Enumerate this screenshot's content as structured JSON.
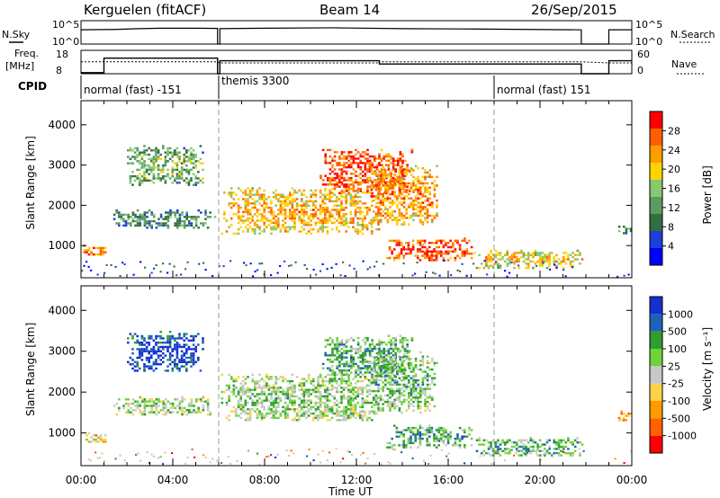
{
  "header": {
    "station": "Kerguelen (fitACF)",
    "beam": "Beam 14",
    "date": "26/Sep/2015"
  },
  "strip_labels": {
    "nsky": "N.Sky",
    "nsearch": "N.Search",
    "freq": "Freq.",
    "freq_unit": "[MHz]",
    "nave": "Nave",
    "cpid": "CPID"
  },
  "strip_ticks": {
    "nsky_left": [
      "10^5",
      "10^0"
    ],
    "nsearch_right": [
      "10^5",
      "10^0"
    ],
    "freq_left": [
      "18",
      "8"
    ],
    "nave_right": [
      "60",
      "0"
    ]
  },
  "cpid_modes": [
    {
      "label": "normal (fast) -151",
      "start": 0.0,
      "end": 6.0
    },
    {
      "label": "themis 3300",
      "start": 6.0,
      "end": 18.0
    },
    {
      "label": "normal (fast) 151",
      "start": 18.0,
      "end": 24.0
    }
  ],
  "colors": {
    "power": [
      "#0000ff",
      "#1c3fd8",
      "#336e42",
      "#5a9c60",
      "#88c870",
      "#ffd400",
      "#ff9d00",
      "#ff5f00",
      "#ff0000"
    ],
    "velocity": [
      "#ff0000",
      "#ff6000",
      "#ff9a00",
      "#ffd24a",
      "#c8c8c8",
      "#6fd23c",
      "#2e9e2e",
      "#2060b8",
      "#1030d0"
    ]
  },
  "chart_data": [
    {
      "type": "heatmap",
      "title": "",
      "xlabel": "",
      "ylabel": "Slant Range [km]",
      "xlim": [
        0,
        24
      ],
      "ylim": [
        200,
        4600
      ],
      "x_ticks": [
        "00:00",
        "04:00",
        "08:00",
        "12:00",
        "16:00",
        "20:00",
        "00:00"
      ],
      "y_ticks": [
        1000,
        2000,
        3000,
        4000
      ],
      "colorbar": {
        "label": "Power [dB]",
        "range": [
          0,
          32
        ],
        "ticks": [
          4,
          8,
          12,
          16,
          20,
          24,
          28
        ]
      },
      "regions": [
        {
          "t": [
            0.1,
            1.1
          ],
          "r": [
            760,
            1020
          ],
          "level": 0.7
        },
        {
          "t": [
            1.2,
            5.8
          ],
          "r": [
            1450,
            1900
          ],
          "level": 0.25
        },
        {
          "t": [
            2.0,
            5.3
          ],
          "r": [
            2500,
            3500
          ],
          "level": 0.35
        },
        {
          "t": [
            6.1,
            13.0
          ],
          "r": [
            1300,
            2450
          ],
          "level": 0.6
        },
        {
          "t": [
            10.4,
            14.4
          ],
          "r": [
            2300,
            3400
          ],
          "level": 0.8
        },
        {
          "t": [
            12.5,
            15.5
          ],
          "r": [
            1500,
            3000
          ],
          "level": 0.65
        },
        {
          "t": [
            13.3,
            17.0
          ],
          "r": [
            650,
            1200
          ],
          "level": 0.8
        },
        {
          "t": [
            17.0,
            21.8
          ],
          "r": [
            450,
            900
          ],
          "level": 0.55
        },
        {
          "t": [
            23.3,
            24.0
          ],
          "r": [
            1300,
            1550
          ],
          "level": 0.3
        }
      ]
    },
    {
      "type": "heatmap",
      "title": "",
      "xlabel": "Time UT",
      "ylabel": "Slant Range [km]",
      "xlim": [
        0,
        24
      ],
      "ylim": [
        200,
        4600
      ],
      "x_ticks": [
        "00:00",
        "04:00",
        "08:00",
        "12:00",
        "16:00",
        "20:00",
        "00:00"
      ],
      "y_ticks": [
        1000,
        2000,
        3000,
        4000
      ],
      "colorbar": {
        "label": "Velocity [m s⁻¹]",
        "ticks": [
          "1000",
          "500",
          "100",
          "25",
          "-25",
          "-100",
          "-500",
          "-1000"
        ]
      },
      "regions": [
        {
          "t": [
            0.1,
            1.1
          ],
          "r": [
            760,
            1020
          ],
          "level": 0.3
        },
        {
          "t": [
            1.2,
            5.8
          ],
          "r": [
            1450,
            1900
          ],
          "level": 0.5
        },
        {
          "t": [
            2.0,
            5.3
          ],
          "r": [
            2500,
            3500
          ],
          "level": 0.85
        },
        {
          "t": [
            6.1,
            13.0
          ],
          "r": [
            1300,
            2450
          ],
          "level": 0.5
        },
        {
          "t": [
            10.4,
            14.4
          ],
          "r": [
            2300,
            3400
          ],
          "level": 0.6
        },
        {
          "t": [
            12.5,
            15.5
          ],
          "r": [
            1500,
            3000
          ],
          "level": 0.55
        },
        {
          "t": [
            13.3,
            17.0
          ],
          "r": [
            650,
            1200
          ],
          "level": 0.6
        },
        {
          "t": [
            17.0,
            21.8
          ],
          "r": [
            450,
            900
          ],
          "level": 0.6
        },
        {
          "t": [
            23.3,
            24.0
          ],
          "r": [
            1300,
            1550
          ],
          "level": 0.25
        }
      ]
    }
  ]
}
